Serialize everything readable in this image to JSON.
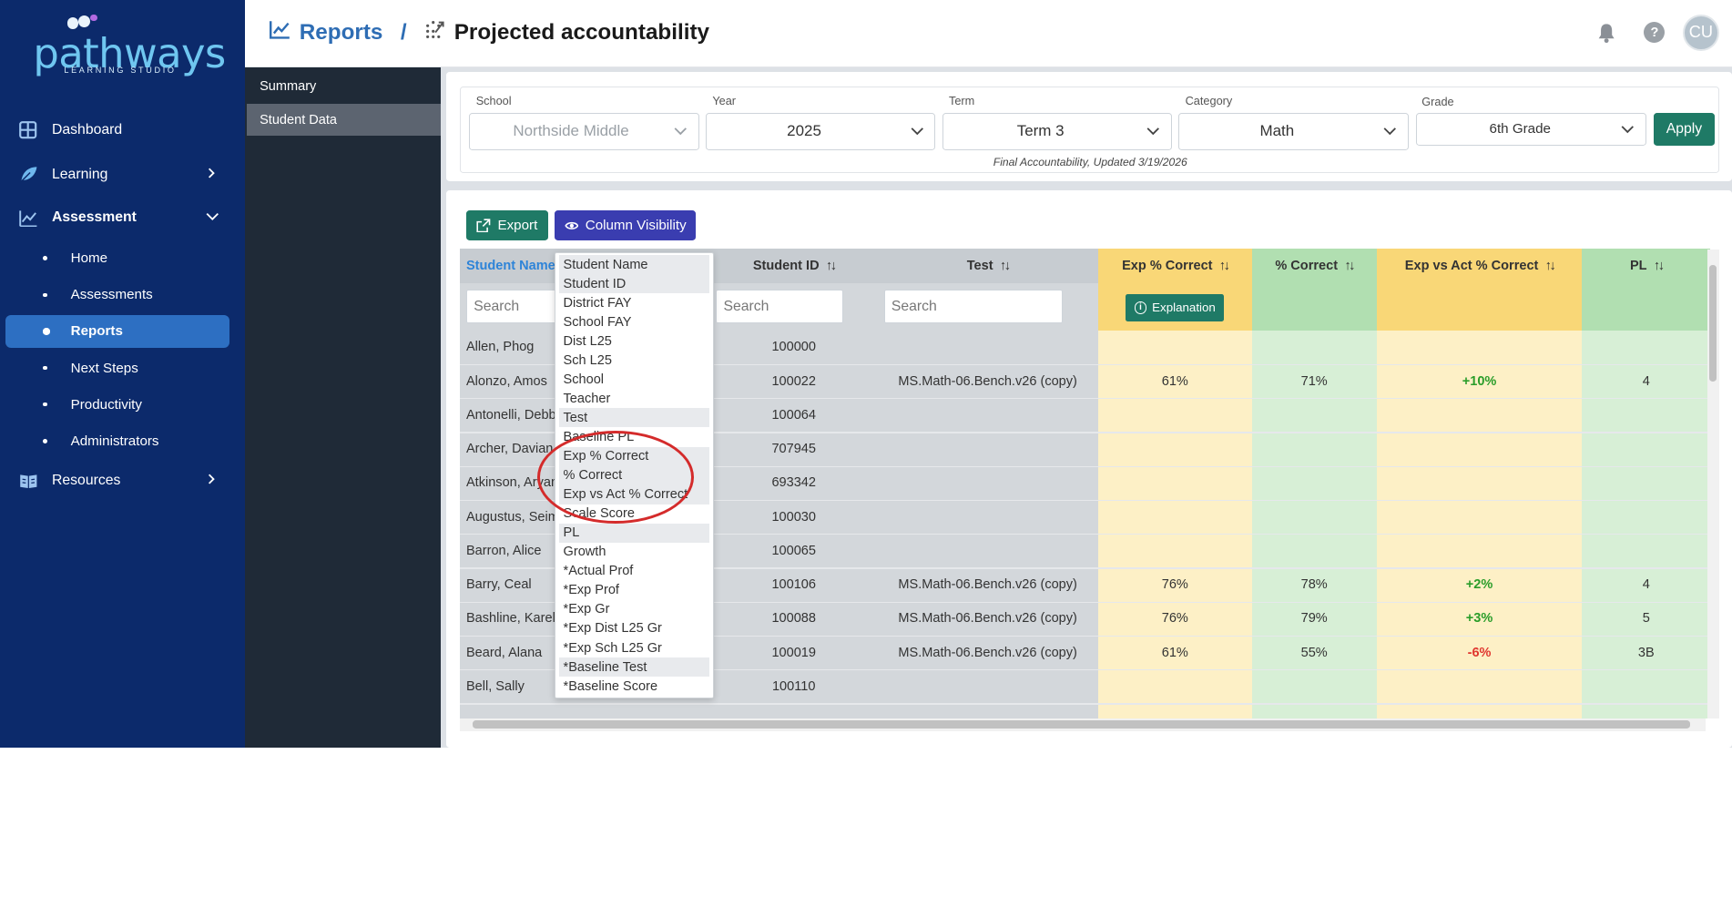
{
  "brand": {
    "name": "pathways",
    "tagline": "LEARNING STUDIO"
  },
  "sidebar": {
    "items": [
      {
        "label": "Dashboard",
        "icon": "grid-icon"
      },
      {
        "label": "Learning",
        "icon": "leaf-icon"
      },
      {
        "label": "Assessment",
        "icon": "chart-icon"
      },
      {
        "label": "Resources",
        "icon": "book-icon"
      }
    ],
    "assessment_sub": [
      "Home",
      "Assessments",
      "Reports",
      "Next Steps",
      "Productivity",
      "Administrators"
    ]
  },
  "subnav": {
    "items": [
      "Summary",
      "Student Data"
    ],
    "active": "Student Data"
  },
  "header": {
    "crumb": "Reports",
    "sep": "/",
    "page": "Projected accountability",
    "avatar": "CU",
    "help": "?"
  },
  "filters": {
    "school": {
      "label": "School",
      "value": "Northside Middle"
    },
    "year": {
      "label": "Year",
      "value": "2025"
    },
    "term": {
      "label": "Term",
      "value": "Term 3"
    },
    "category": {
      "label": "Category",
      "value": "Math"
    },
    "grade": {
      "label": "Grade",
      "value": "6th Grade"
    },
    "apply": "Apply",
    "note": "Final Accountability, Updated 3/19/2026"
  },
  "toolbar": {
    "export": "Export",
    "column_visibility": "Column Visibility"
  },
  "table": {
    "headers": {
      "student_name": "Student Name",
      "student_id": "Student ID",
      "test": "Test",
      "exp_pct": "Exp % Correct",
      "pct": "% Correct",
      "exp_vs_act": "Exp vs Act % Correct",
      "pl": "PL"
    },
    "sort_glyph": "↑↓",
    "search_placeholder": "Search",
    "explanation": "Explanation",
    "rows": [
      {
        "name": "Allen, Phog",
        "id": "100000",
        "test": "",
        "exp": "",
        "pct": "",
        "diff": "",
        "pl": ""
      },
      {
        "name": "Alonzo, Amos",
        "id": "100022",
        "test": "MS.Math-06.Bench.v26 (copy)",
        "exp": "61%",
        "pct": "71%",
        "diff": "+10%",
        "pl": "4"
      },
      {
        "name": "Antonelli, Debb",
        "id": "100064",
        "test": "",
        "exp": "",
        "pct": "",
        "diff": "",
        "pl": ""
      },
      {
        "name": "Archer, Davian",
        "id": "707945",
        "test": "",
        "exp": "",
        "pct": "",
        "diff": "",
        "pl": ""
      },
      {
        "name": "Atkinson, Aryan",
        "id": "693342",
        "test": "",
        "exp": "",
        "pct": "",
        "diff": "",
        "pl": ""
      },
      {
        "name": "Augustus, Seime",
        "id": "100030",
        "test": "",
        "exp": "",
        "pct": "",
        "diff": "",
        "pl": ""
      },
      {
        "name": "Barron, Alice",
        "id": "100065",
        "test": "",
        "exp": "",
        "pct": "",
        "diff": "",
        "pl": ""
      },
      {
        "name": "Barry, Ceal",
        "id": "100106",
        "test": "MS.Math-06.Bench.v26 (copy)",
        "exp": "76%",
        "pct": "78%",
        "diff": "+2%",
        "pl": "4"
      },
      {
        "name": "Bashline, Karel",
        "id": "100088",
        "test": "MS.Math-06.Bench.v26 (copy)",
        "exp": "76%",
        "pct": "79%",
        "diff": "+3%",
        "pl": "5"
      },
      {
        "name": "Beard, Alana",
        "id": "100019",
        "test": "MS.Math-06.Bench.v26 (copy)",
        "exp": "61%",
        "pct": "55%",
        "diff": "-6%",
        "pl": "3B"
      },
      {
        "name": "Bell, Sally",
        "id": "100110",
        "test": "",
        "exp": "",
        "pct": "",
        "diff": "",
        "pl": ""
      }
    ]
  },
  "column_menu": {
    "items": [
      {
        "label": "Student Name",
        "on": true
      },
      {
        "label": "Student ID",
        "on": true
      },
      {
        "label": "District FAY",
        "on": false
      },
      {
        "label": "School FAY",
        "on": false
      },
      {
        "label": "Dist L25",
        "on": false
      },
      {
        "label": "Sch L25",
        "on": false
      },
      {
        "label": "School",
        "on": false
      },
      {
        "label": "Teacher",
        "on": false
      },
      {
        "label": "Test",
        "on": true
      },
      {
        "label": "Baseline PL",
        "on": false
      },
      {
        "label": "Exp % Correct",
        "on": true
      },
      {
        "label": "% Correct",
        "on": true
      },
      {
        "label": "Exp vs Act % Correct",
        "on": true
      },
      {
        "label": "Scale Score",
        "on": false
      },
      {
        "label": "PL",
        "on": true
      },
      {
        "label": "Growth",
        "on": false
      },
      {
        "label": "*Actual Prof",
        "on": false
      },
      {
        "label": "*Exp Prof",
        "on": false
      },
      {
        "label": "*Exp Gr",
        "on": false
      },
      {
        "label": "*Exp Dist L25 Gr",
        "on": false
      },
      {
        "label": "*Exp Sch L25 Gr",
        "on": false
      },
      {
        "label": "*Baseline Test",
        "on": true
      },
      {
        "label": "*Baseline Score",
        "on": false
      }
    ]
  },
  "colors": {
    "sidebar": "#0c2a6b",
    "accent": "#1f7a66",
    "column_visibility": "#3a3db0",
    "positive": "#2a9d2a",
    "negative": "#e0362f",
    "annotation": "#d42b2b"
  }
}
